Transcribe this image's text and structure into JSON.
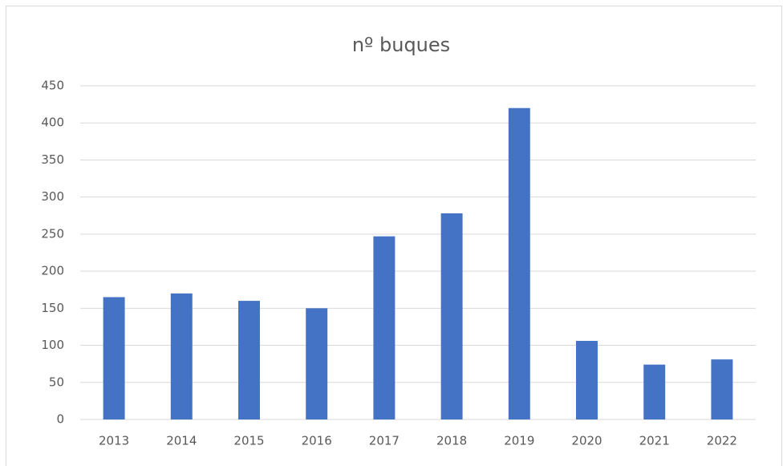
{
  "chart_data": {
    "type": "bar",
    "title": "nº buques",
    "categories": [
      "2013",
      "2014",
      "2015",
      "2016",
      "2017",
      "2018",
      "2019",
      "2020",
      "2021",
      "2022"
    ],
    "values": [
      165,
      170,
      160,
      150,
      247,
      278,
      420,
      106,
      74,
      81
    ],
    "color": "#4472c4",
    "ylim": [
      0,
      450
    ],
    "yticks": [
      0,
      50,
      100,
      150,
      200,
      250,
      300,
      350,
      400,
      450
    ],
    "grid": true
  }
}
